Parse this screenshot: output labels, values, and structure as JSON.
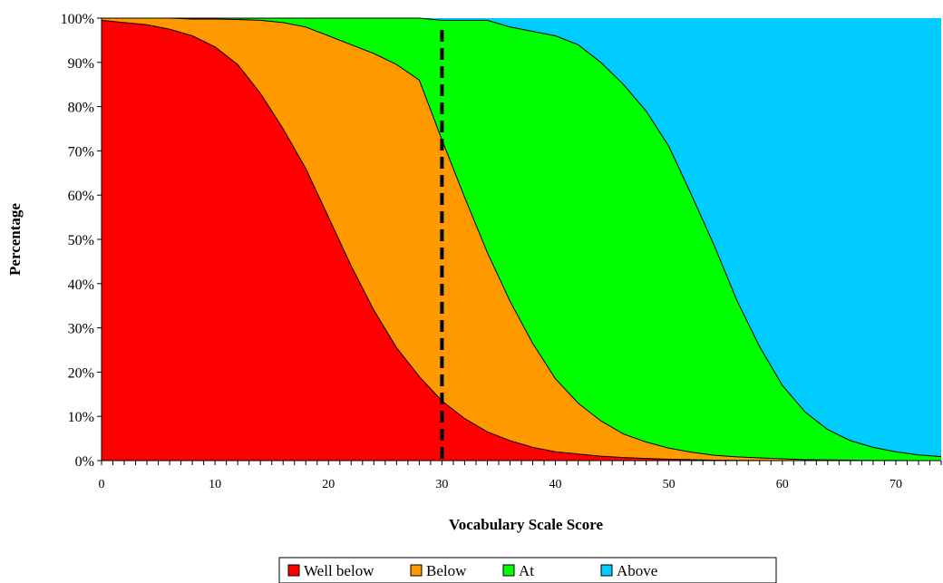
{
  "chart_data": {
    "type": "area",
    "stacked": true,
    "normalized_percent": true,
    "title": "",
    "xlabel": "Vocabulary Scale Score",
    "ylabel": "Percentage",
    "xlim": [
      0,
      74
    ],
    "ylim": [
      0,
      100
    ],
    "x_ticks": [
      0,
      10,
      20,
      30,
      40,
      50,
      60,
      70
    ],
    "x_tick_labels": [
      "0",
      "10",
      "20",
      "30",
      "40",
      "50",
      "60",
      "70"
    ],
    "y_ticks": [
      0,
      10,
      20,
      30,
      40,
      50,
      60,
      70,
      80,
      90,
      100
    ],
    "y_tick_labels": [
      "0%",
      "10%",
      "20%",
      "30%",
      "40%",
      "50%",
      "60%",
      "70%",
      "80%",
      "90%",
      "100%"
    ],
    "grid": false,
    "legend_position": "bottom",
    "reference_line": {
      "x": 30,
      "style": "dashed"
    },
    "x": [
      0,
      2,
      4,
      6,
      8,
      10,
      12,
      14,
      16,
      18,
      20,
      22,
      24,
      26,
      28,
      30,
      32,
      34,
      36,
      38,
      40,
      42,
      44,
      46,
      48,
      50,
      52,
      54,
      56,
      58,
      60,
      62,
      64,
      66,
      68,
      70,
      72,
      74
    ],
    "series": [
      {
        "name": "Well below",
        "color": "#ff0000",
        "values": [
          99.5,
          99,
          98.5,
          97.5,
          96,
          93.5,
          89.5,
          83,
          75,
          66,
          55,
          44,
          34,
          25.5,
          19,
          13.5,
          9.5,
          6.5,
          4.5,
          3,
          2,
          1.5,
          1,
          0.7,
          0.5,
          0.3,
          0.2,
          0.1,
          0.05,
          0.02,
          0,
          0,
          0,
          0,
          0,
          0,
          0,
          0
        ]
      },
      {
        "name": "Below",
        "color": "#ff9900",
        "values": [
          0.5,
          1,
          1.5,
          2.5,
          3.8,
          6.3,
          10.2,
          16.5,
          24,
          32,
          41,
          50,
          58,
          64,
          67,
          59,
          50,
          40.5,
          31.5,
          23.5,
          16.5,
          11.5,
          8,
          5.3,
          3.7,
          2.5,
          1.7,
          1.1,
          0.8,
          0.6,
          0.4,
          0.2,
          0.15,
          0.1,
          0.05,
          0.03,
          0,
          0
        ]
      },
      {
        "name": "At",
        "color": "#00ff00",
        "values": [
          0,
          0,
          0,
          0,
          0.2,
          0.2,
          0.3,
          0.5,
          1,
          2,
          4,
          6,
          8,
          10.5,
          14,
          27,
          40,
          52.5,
          62,
          70.5,
          77.5,
          81,
          81,
          79,
          74.8,
          68.2,
          58.1,
          47.4,
          35.3,
          25.1,
          16.6,
          10.8,
          6.85,
          4.4,
          2.95,
          1.97,
          1.3,
          0.9
        ]
      },
      {
        "name": "Above",
        "color": "#00ccff",
        "values": [
          0,
          0,
          0,
          0,
          0,
          0,
          0.2,
          0,
          0,
          0,
          0,
          0.5,
          0,
          0,
          0,
          0.5,
          0.5,
          0.5,
          2,
          3,
          4,
          6,
          10,
          15,
          21,
          29,
          40,
          51.4,
          63.85,
          74.28,
          83,
          89,
          93,
          95.5,
          97,
          98,
          98.7,
          99.1
        ]
      }
    ]
  }
}
